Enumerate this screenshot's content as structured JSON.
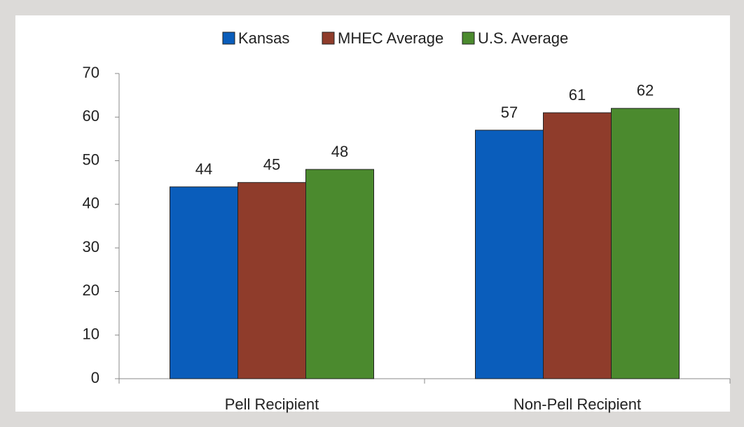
{
  "chart_data": {
    "type": "bar",
    "categories": [
      "Pell Recipient",
      "Non-Pell Recipient"
    ],
    "series": [
      {
        "name": "Kansas",
        "color": "#0a5dbb",
        "values": [
          44,
          57
        ]
      },
      {
        "name": "MHEC Average",
        "color": "#8f3c2b",
        "values": [
          45,
          61
        ]
      },
      {
        "name": "U.S. Average",
        "color": "#4b8a2e",
        "values": [
          48,
          62
        ]
      }
    ],
    "ylim": [
      0,
      70
    ],
    "yticks": [
      0,
      10,
      20,
      30,
      40,
      50,
      60,
      70
    ],
    "grid": false,
    "legend": "top"
  }
}
